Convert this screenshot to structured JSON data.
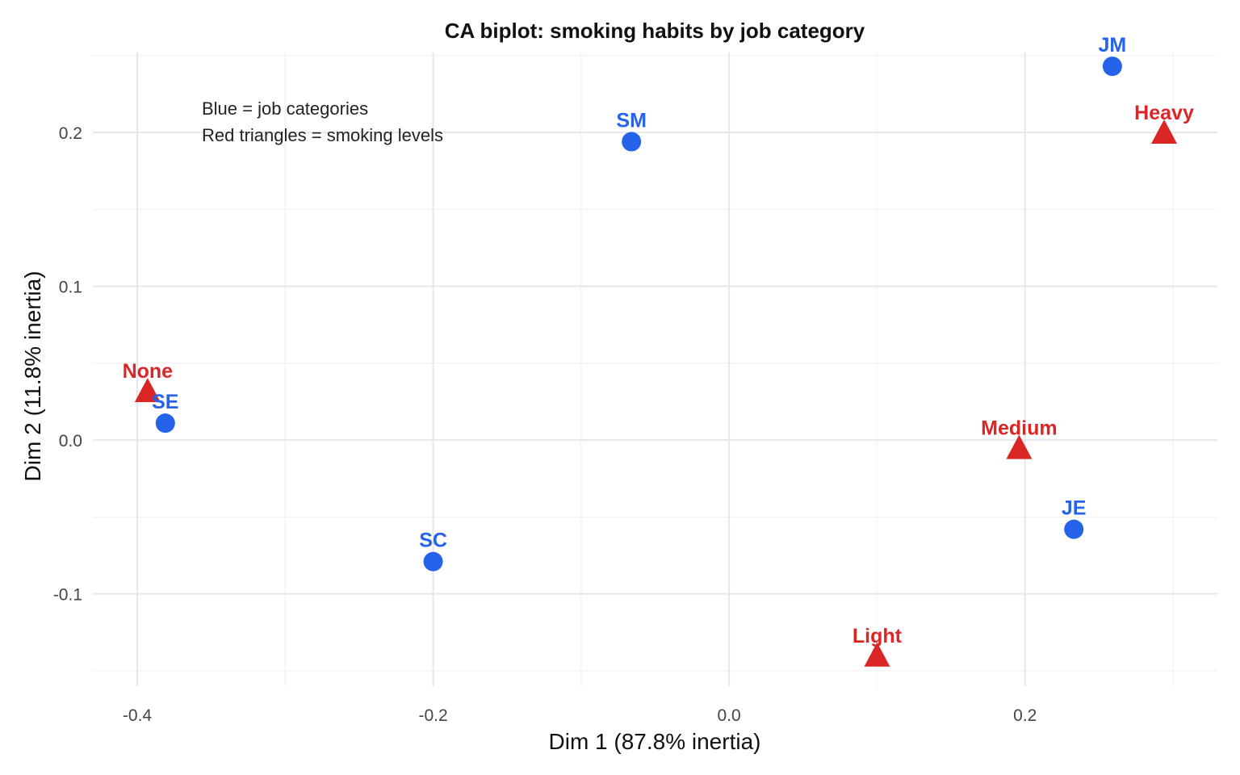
{
  "chart_data": {
    "type": "scatter",
    "title": "CA biplot: smoking habits by job category",
    "xlabel": "Dim 1 (87.8% inertia)",
    "ylabel": "Dim 2 (11.8% inertia)",
    "xlim": [
      -0.43,
      0.33
    ],
    "ylim": [
      -0.16,
      0.252
    ],
    "x_ticks": [
      -0.4,
      -0.2,
      0.0,
      0.2
    ],
    "x_tick_labels": [
      "-0.4",
      "-0.2",
      "0.0",
      "0.2"
    ],
    "y_ticks": [
      -0.1,
      0.0,
      0.1,
      0.2
    ],
    "y_tick_labels": [
      "-0.1",
      "0.0",
      "0.1",
      "0.2"
    ],
    "grid": true,
    "annotations": [
      "Blue = job categories",
      "Red triangles = smoking levels"
    ],
    "colors": {
      "rows": "#2563eb",
      "columns": "#dc2626"
    },
    "series": [
      {
        "group": "rows",
        "marker": "circle",
        "points": [
          {
            "label": "SM",
            "x": -0.066,
            "y": 0.194
          },
          {
            "label": "JM",
            "x": 0.259,
            "y": 0.243
          },
          {
            "label": "SE",
            "x": -0.381,
            "y": 0.011
          },
          {
            "label": "SC",
            "x": -0.2,
            "y": -0.079
          },
          {
            "label": "JE",
            "x": 0.233,
            "y": -0.058
          }
        ]
      },
      {
        "group": "columns",
        "marker": "triangle",
        "points": [
          {
            "label": "None",
            "x": -0.393,
            "y": 0.031
          },
          {
            "label": "Heavy",
            "x": 0.294,
            "y": 0.199
          },
          {
            "label": "Medium",
            "x": 0.196,
            "y": -0.006
          },
          {
            "label": "Light",
            "x": 0.1,
            "y": -0.141
          }
        ]
      }
    ]
  }
}
